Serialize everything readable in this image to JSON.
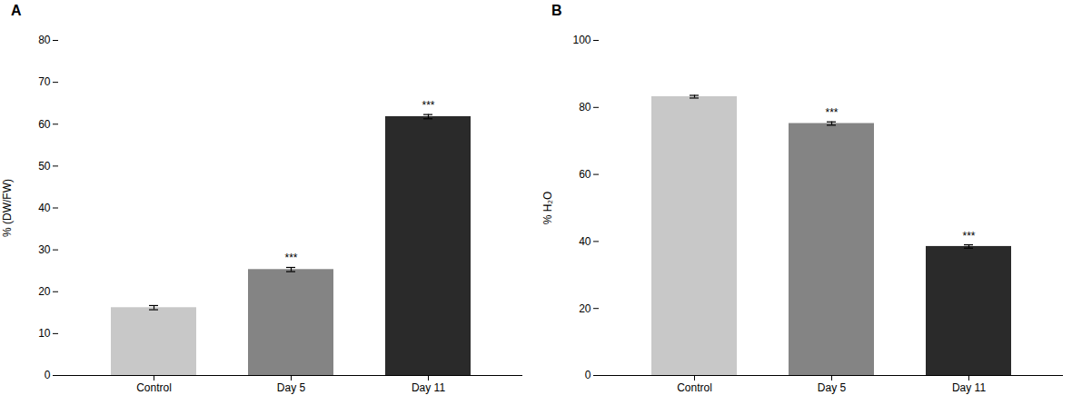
{
  "chart_data": [
    {
      "type": "bar",
      "title": "A",
      "categories": [
        "Control",
        "Day 5",
        "Day 11"
      ],
      "values": [
        16.2,
        25.3,
        61.8
      ],
      "errors": [
        0.5,
        0.5,
        0.5
      ],
      "significance": [
        null,
        "***",
        "***"
      ],
      "colors": [
        "#c8c8c8",
        "#848484",
        "#2a2a2a"
      ],
      "ylabel": "% (DW/FW)",
      "ylim": [
        0,
        80
      ],
      "yticks": [
        0,
        10,
        20,
        30,
        40,
        50,
        60,
        70,
        80
      ],
      "grid": false
    },
    {
      "type": "bar",
      "title": "B",
      "categories": [
        "Control",
        "Day 5",
        "Day 11"
      ],
      "values": [
        83.2,
        75.2,
        38.5
      ],
      "errors": [
        0.4,
        0.5,
        0.5
      ],
      "significance": [
        null,
        "***",
        "***"
      ],
      "colors": [
        "#c8c8c8",
        "#848484",
        "#2a2a2a"
      ],
      "ylabel": "% H₂O",
      "ylim": [
        0,
        100
      ],
      "yticks": [
        0,
        20,
        40,
        60,
        80,
        100
      ],
      "grid": false
    }
  ]
}
